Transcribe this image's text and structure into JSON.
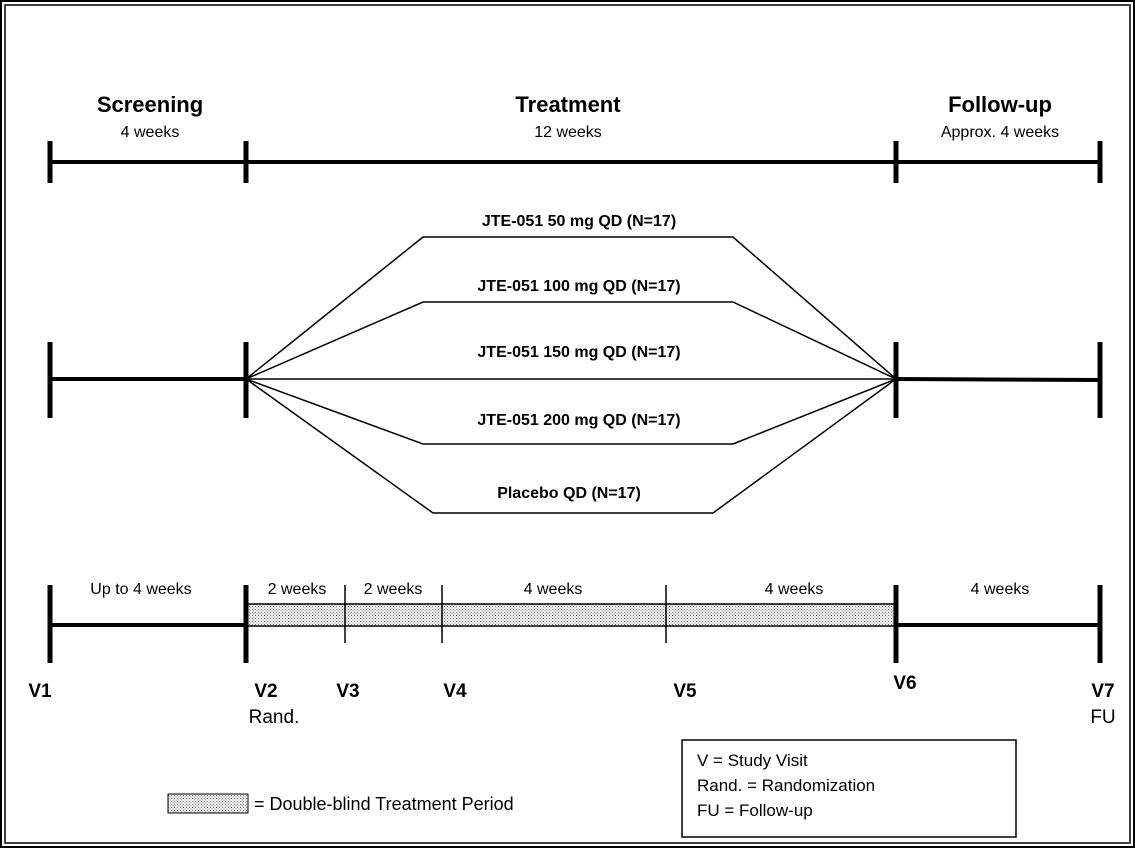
{
  "phases": [
    {
      "id": "screening",
      "title": "Screening",
      "duration": "4 weeks"
    },
    {
      "id": "treatment",
      "title": "Treatment",
      "duration": "12 weeks"
    },
    {
      "id": "followup",
      "title": "Follow-up",
      "duration": "Approx. 4 weeks"
    }
  ],
  "arms": [
    {
      "label": "JTE-051 50 mg QD (N=17)"
    },
    {
      "label": "JTE-051 100 mg QD (N=17)"
    },
    {
      "label": "JTE-051 150 mg QD (N=17)"
    },
    {
      "label": "JTE-051 200 mg QD (N=17)"
    },
    {
      "label": "Placebo QD (N=17)"
    }
  ],
  "intervals": [
    {
      "label": "Up to 4 weeks"
    },
    {
      "label": "2 weeks"
    },
    {
      "label": "2 weeks"
    },
    {
      "label": "4 weeks"
    },
    {
      "label": "4 weeks"
    },
    {
      "label": "4 weeks"
    }
  ],
  "visits": [
    {
      "label": "V1",
      "sub": ""
    },
    {
      "label": "V2",
      "sub": "Rand."
    },
    {
      "label": "V3",
      "sub": ""
    },
    {
      "label": "V4",
      "sub": ""
    },
    {
      "label": "V5",
      "sub": ""
    },
    {
      "label": "V6",
      "sub": ""
    },
    {
      "label": "V7",
      "sub": "FU"
    }
  ],
  "legend": {
    "label": "= Double-blind Treatment Period"
  },
  "key": {
    "lines": [
      "V = Study Visit",
      "Rand. = Randomization",
      "FU = Follow-up"
    ]
  },
  "colors": {
    "line": "#000000",
    "frame": "#000000",
    "hatch_bg": "#f2f2f2",
    "hatch_dot": "#7a7a7a"
  }
}
